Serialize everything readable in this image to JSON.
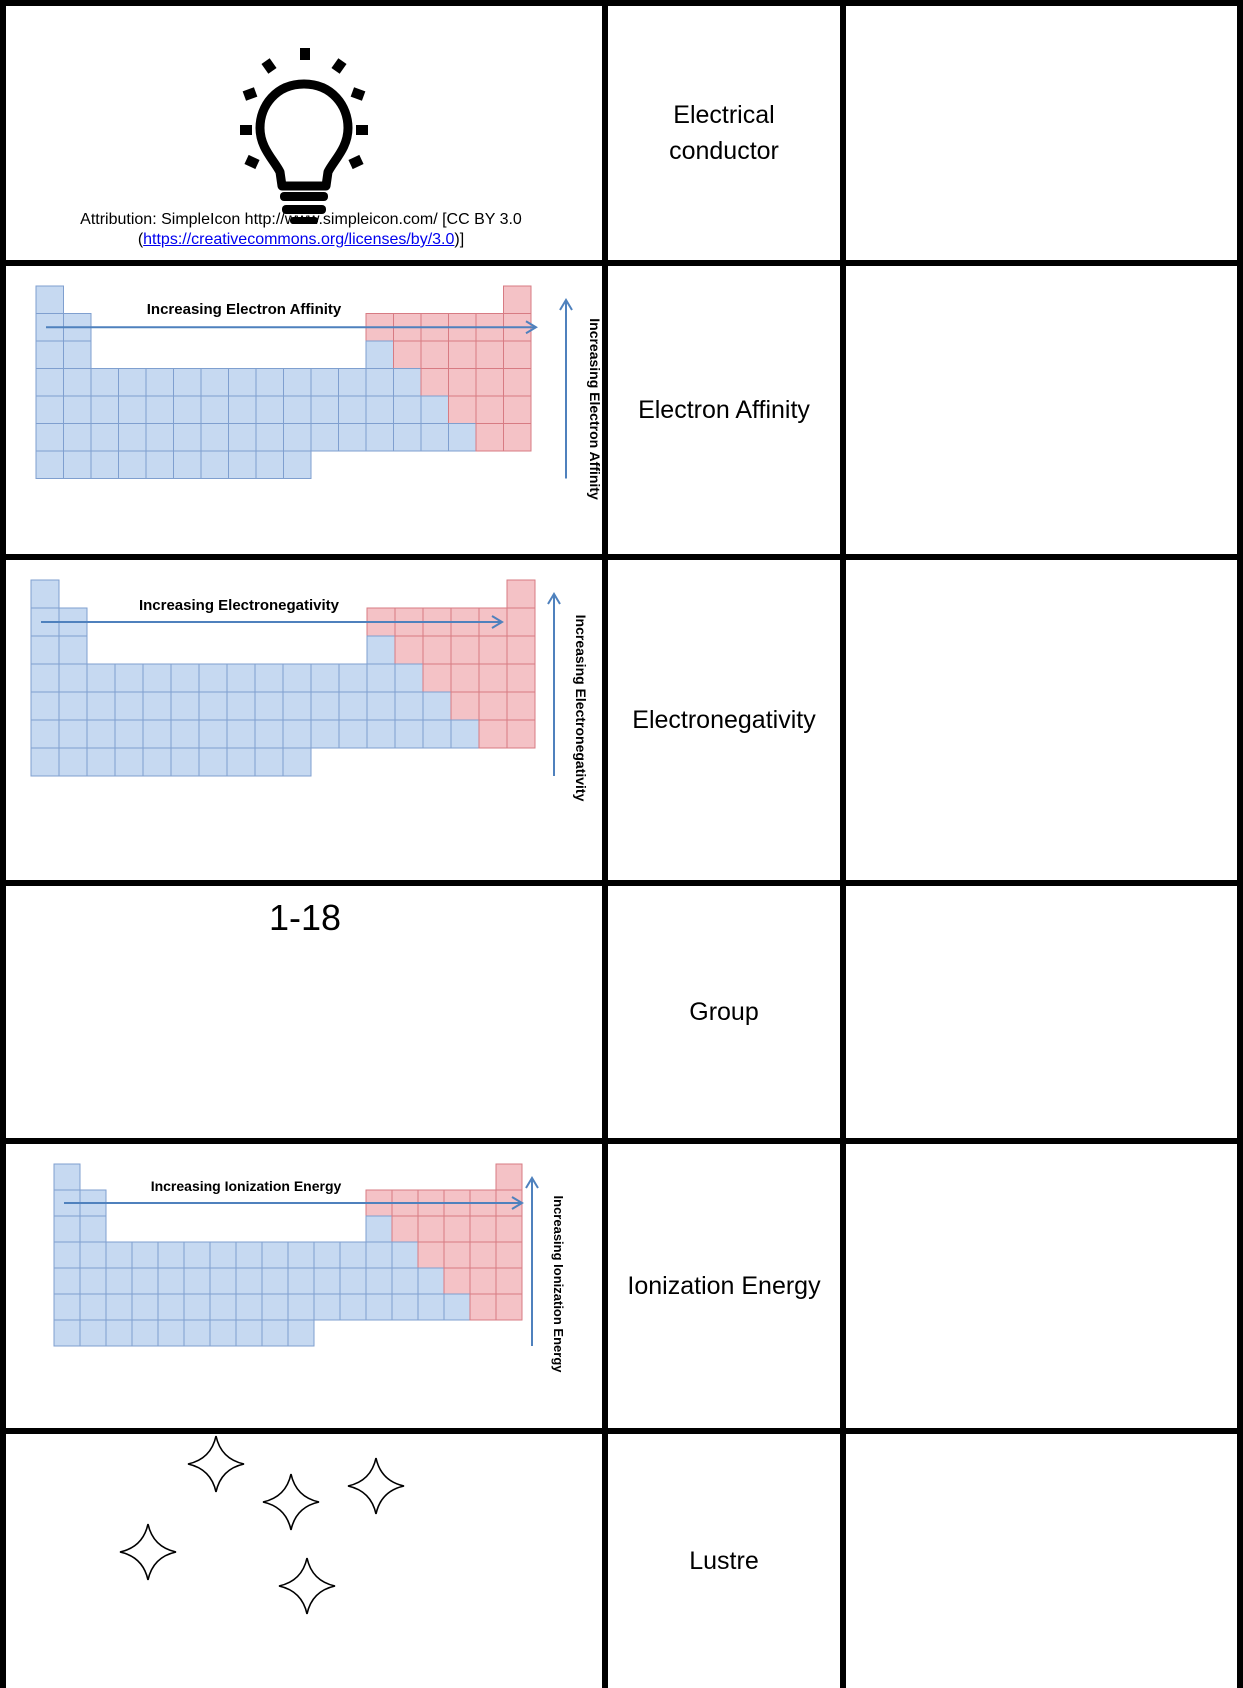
{
  "rows": [
    {
      "term": "Electrical\nconductor",
      "attribution_prefix": "Attribution: SimpleIcon http://www.simpleicon.com/ [CC BY 3.0",
      "attribution_paren_open": "(",
      "attribution_link": "https://creativecommons.org/licenses/by/3.0",
      "attribution_suffix": ")]",
      "icon": "lightbulb-icon"
    },
    {
      "term": "Electron Affinity",
      "trend_horizontal": "Increasing Electron Affinity",
      "trend_vertical": "Increasing Electron Affinity"
    },
    {
      "term": "Electronegativity",
      "trend_horizontal": "Increasing Electronegativity",
      "trend_vertical": "Increasing Electronegativity"
    },
    {
      "term": "Group",
      "value": "1-18"
    },
    {
      "term": "Ionization Energy",
      "trend_horizontal": "Increasing Ionization Energy",
      "trend_vertical": "Increasing Ionization Energy"
    },
    {
      "term": "Lustre",
      "icon": "sparkle-icon"
    }
  ],
  "colors": {
    "blue_cell": "#c6d9f1",
    "blue_border": "#7f9fcf",
    "red_cell": "#f4c2c6",
    "red_border": "#d77b83",
    "arrow": "#4f81bd",
    "link": "#0000ee"
  }
}
